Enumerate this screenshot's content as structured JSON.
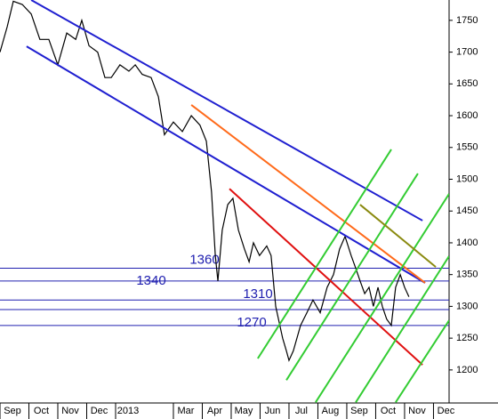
{
  "chart_data": {
    "type": "line",
    "series": [
      {
        "color": "#000000",
        "x": [
          0,
          0.25,
          0.46,
          0.77,
          1.08,
          1.38,
          1.69,
          2.0,
          2.31,
          2.62,
          2.83,
          3.08,
          3.38,
          3.63,
          3.85,
          4.15,
          4.46,
          4.68,
          4.92,
          5.23,
          5.48,
          5.69,
          6.0,
          6.31,
          6.62,
          6.92,
          7.14,
          7.32,
          7.45,
          7.54,
          7.69,
          7.88,
          8.06,
          8.25,
          8.46,
          8.62,
          8.77,
          8.98,
          9.23,
          9.38,
          9.54,
          9.78,
          9.91,
          10.0,
          10.15,
          10.4,
          10.62,
          10.83,
          11.08,
          11.32,
          11.54,
          11.75,
          11.94,
          12.15,
          12.31,
          12.46,
          12.62,
          12.77,
          12.92,
          13.08,
          13.23,
          13.38,
          13.54,
          13.69,
          13.85,
          14.0,
          14.15
        ],
        "values": [
          1700,
          1740,
          1780,
          1775,
          1760,
          1720,
          1720,
          1680,
          1730,
          1720,
          1750,
          1710,
          1700,
          1660,
          1660,
          1680,
          1670,
          1680,
          1665,
          1660,
          1630,
          1570,
          1590,
          1575,
          1600,
          1585,
          1560,
          1480,
          1380,
          1340,
          1420,
          1460,
          1470,
          1420,
          1390,
          1370,
          1400,
          1380,
          1395,
          1380,
          1300,
          1250,
          1230,
          1215,
          1230,
          1270,
          1290,
          1310,
          1290,
          1330,
          1350,
          1390,
          1410,
          1380,
          1360,
          1340,
          1320,
          1330,
          1300,
          1330,
          1300,
          1280,
          1270,
          1330,
          1350,
          1330,
          1315
        ]
      }
    ],
    "trend_lines": [
      {
        "color": "#1f1fd0",
        "x": [
          1.08,
          14.62
        ],
        "values": [
          1782,
          1435
        ]
      },
      {
        "color": "#1f1fd0",
        "x": [
          0.92,
          14.71
        ],
        "values": [
          1709,
          1337
        ]
      },
      {
        "color": "#ff6a1a",
        "x": [
          6.62,
          14.71
        ],
        "values": [
          1617,
          1337
        ]
      },
      {
        "color": "#e01010",
        "x": [
          7.94,
          14.62
        ],
        "values": [
          1485,
          1208
        ]
      },
      {
        "color": "#33cc33",
        "x": [
          8.92,
          13.54
        ],
        "values": [
          1218,
          1547
        ]
      },
      {
        "color": "#33cc33",
        "x": [
          9.91,
          14.46
        ],
        "values": [
          1184,
          1509
        ]
      },
      {
        "color": "#33cc33",
        "x": [
          10.92,
          15.54
        ],
        "values": [
          1149,
          1477
        ]
      },
      {
        "color": "#33cc33",
        "x": [
          12.31,
          15.54
        ],
        "values": [
          1149,
          1379
        ]
      },
      {
        "color": "#33cc33",
        "x": [
          13.69,
          15.54
        ],
        "values": [
          1149,
          1278
        ]
      },
      {
        "color": "#8a8a10",
        "x": [
          12.46,
          15.08
        ],
        "values": [
          1460,
          1362
        ]
      }
    ],
    "levels": [
      1360,
      1340,
      1310,
      1295,
      1270
    ],
    "level_color": "#2020b0",
    "xlim": [
      0,
      15.54
    ],
    "xticks": [
      {
        "value": 0,
        "label": "Sep"
      },
      {
        "value": 1,
        "label": "Oct"
      },
      {
        "value": 2,
        "label": "Nov"
      },
      {
        "value": 3,
        "label": "Dec"
      },
      {
        "value": 4,
        "label": "2013"
      },
      {
        "value": 6,
        "label": "Mar"
      },
      {
        "value": 7,
        "label": "Apr"
      },
      {
        "value": 8,
        "label": "May"
      },
      {
        "value": 9,
        "label": "Jun"
      },
      {
        "value": 10,
        "label": "Jul"
      },
      {
        "value": 11,
        "label": "Aug"
      },
      {
        "value": 12,
        "label": "Sep"
      },
      {
        "value": 13,
        "label": "Oct"
      },
      {
        "value": 14,
        "label": "Nov"
      },
      {
        "value": 15,
        "label": "Dec"
      }
    ],
    "ylim": [
      1148,
      1782
    ],
    "yticks": [
      1200,
      1250,
      1300,
      1350,
      1400,
      1450,
      1500,
      1550,
      1600,
      1650,
      1700,
      1750
    ],
    "grid": false
  }
}
